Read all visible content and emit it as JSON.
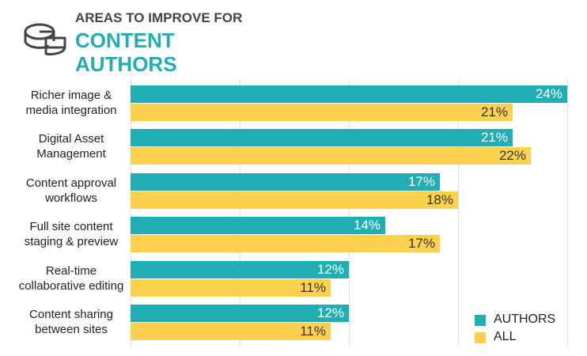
{
  "chart_data": {
    "type": "bar",
    "orientation": "horizontal",
    "title_lines": [
      "AREAS TO IMPROVE FOR",
      "CONTENT",
      "AUTHORS"
    ],
    "categories": [
      "Richer image &\nmedia integration",
      "Digital Asset\nManagement",
      "Content approval\nworkflows",
      "Full site content\nstaging & preview",
      "Real-time\ncollaborative editing",
      "Content sharing\nbetween sites"
    ],
    "series": [
      {
        "name": "AUTHORS",
        "color": "#20adb3",
        "values": [
          24,
          21,
          17,
          14,
          12,
          12
        ],
        "value_labels": [
          "24%",
          "21%",
          "17%",
          "14%",
          "12%",
          "12%"
        ],
        "label_color": "#ffffff"
      },
      {
        "name": "ALL",
        "color": "#fdd04d",
        "values": [
          21,
          22,
          18,
          17,
          11,
          11
        ],
        "value_labels": [
          "21%",
          "22%",
          "18%",
          "17%",
          "11%",
          "11%"
        ],
        "label_color": "#333333"
      }
    ],
    "xlim": [
      0,
      24
    ],
    "xticks": [
      0,
      6,
      12,
      18,
      24
    ],
    "grid": true,
    "legend": "bottom-right"
  }
}
